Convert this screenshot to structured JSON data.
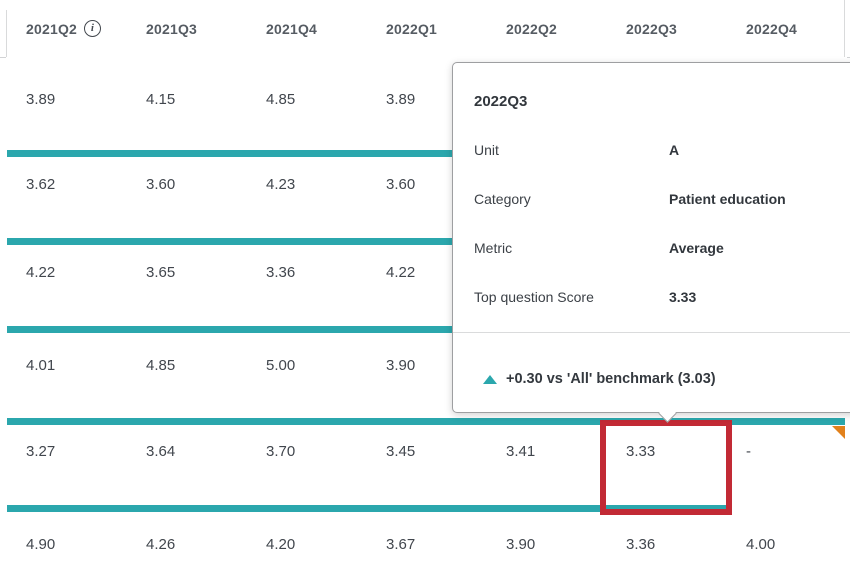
{
  "colors": {
    "accent_teal": "#2ba7ad",
    "highlight_red": "#c22a35",
    "flag_orange": "#e2811c"
  },
  "table": {
    "columns": [
      {
        "label": "2021Q2",
        "info_icon": true,
        "info_icon_glyph": "i"
      },
      {
        "label": "2021Q3",
        "info_icon": false
      },
      {
        "label": "2021Q4",
        "info_icon": false
      },
      {
        "label": "2022Q1",
        "info_icon": false
      },
      {
        "label": "2022Q2",
        "info_icon": false
      },
      {
        "label": "2022Q3",
        "info_icon": false
      },
      {
        "label": "2022Q4",
        "info_icon": false
      }
    ],
    "rows": [
      {
        "cells": [
          "3.89",
          "4.15",
          "4.85",
          "3.89",
          "",
          "",
          ""
        ],
        "bar": "full"
      },
      {
        "cells": [
          "3.62",
          "3.60",
          "4.23",
          "3.60",
          "",
          "",
          ""
        ],
        "bar": "full"
      },
      {
        "cells": [
          "4.22",
          "3.65",
          "3.36",
          "4.22",
          "",
          "",
          ""
        ],
        "bar": "full"
      },
      {
        "cells": [
          "4.01",
          "4.85",
          "5.00",
          "3.90",
          "",
          "",
          ""
        ],
        "bar": "full"
      },
      {
        "cells": [
          "3.27",
          "3.64",
          "3.70",
          "3.45",
          "3.41",
          "3.33",
          "-"
        ],
        "bar": "partial"
      },
      {
        "cells": [
          "4.90",
          "4.26",
          "4.20",
          "3.67",
          "3.90",
          "3.36",
          "4.00"
        ],
        "bar": "none"
      }
    ]
  },
  "highlight": {
    "row_index": 4,
    "column": "2022Q3",
    "value": "3.33"
  },
  "flagged_cell": {
    "row_index": 4,
    "column": "2022Q4"
  },
  "tooltip": {
    "title": "2022Q3",
    "fields": [
      {
        "label": "Unit",
        "value": "A"
      },
      {
        "label": "Category",
        "value": "Patient education"
      },
      {
        "label": "Metric",
        "value": "Average"
      },
      {
        "label": "Top question Score",
        "value": "3.33"
      }
    ],
    "benchmark": {
      "icon": "triangle-up",
      "text": "+0.30 vs 'All' benchmark (3.03)"
    }
  }
}
